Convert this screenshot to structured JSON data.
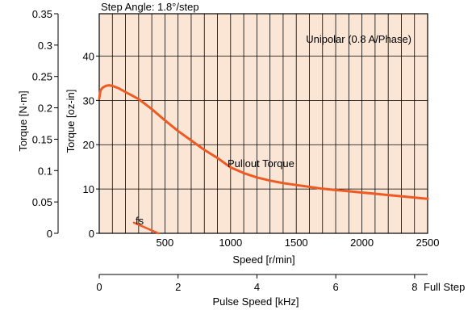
{
  "chart_data": {
    "type": "line",
    "title": "Step Angle: 1.8°/step",
    "colors": {
      "plot_background": "#fbe6d6",
      "grid": "#000000",
      "curve": "#ee5a24"
    },
    "grid": true,
    "x_axes": {
      "speed": {
        "label": "Speed [r/min]",
        "range": [
          0,
          2500
        ],
        "ticks": [
          500,
          1000,
          1500,
          2000,
          2500
        ]
      },
      "pulse": {
        "label": "Pulse Speed [kHz]",
        "range": [
          0,
          8.33
        ],
        "ticks": [
          0,
          2,
          4,
          6,
          8
        ],
        "end_label": "Full Step"
      }
    },
    "y_axes": {
      "nm": {
        "label": "Torque [N·m]",
        "range": [
          0,
          0.35
        ],
        "ticks": [
          0,
          0.05,
          0.1,
          0.15,
          0.2,
          0.25,
          0.3,
          0.35
        ],
        "tick_labels": [
          "0",
          "0.05",
          "0.1",
          "0.15",
          "0.2",
          "0.25",
          "0.3",
          "0.35"
        ]
      },
      "ozin": {
        "label": "Torque [oz-in]",
        "range": [
          0,
          49.56
        ],
        "ticks": [
          0,
          10,
          20,
          30,
          40
        ]
      }
    },
    "annotations": {
      "condition": "Unipolar (0.8 A/Phase)",
      "curve_label": "Pullout Torque",
      "fs_label": "fs"
    },
    "series": [
      {
        "name": "Pullout Torque",
        "x": [
          0,
          10,
          25,
          50,
          75,
          100,
          150,
          200,
          300,
          400,
          500,
          600,
          700,
          800,
          900,
          1000,
          1100,
          1200,
          1300,
          1400,
          1500,
          1600,
          1700,
          1800,
          1900,
          2000,
          2100,
          2200,
          2300,
          2400,
          2500
        ],
        "y": [
          0.215,
          0.228,
          0.232,
          0.235,
          0.236,
          0.235,
          0.231,
          0.225,
          0.214,
          0.198,
          0.18,
          0.163,
          0.148,
          0.133,
          0.12,
          0.105,
          0.096,
          0.089,
          0.084,
          0.08,
          0.077,
          0.074,
          0.071,
          0.069,
          0.067,
          0.065,
          0.063,
          0.061,
          0.059,
          0.057,
          0.055
        ]
      },
      {
        "name": "fs",
        "x": [
          0.88,
          1.5
        ],
        "y": [
          0.017,
          0.0
        ],
        "x_unit": "kHz"
      }
    ]
  }
}
